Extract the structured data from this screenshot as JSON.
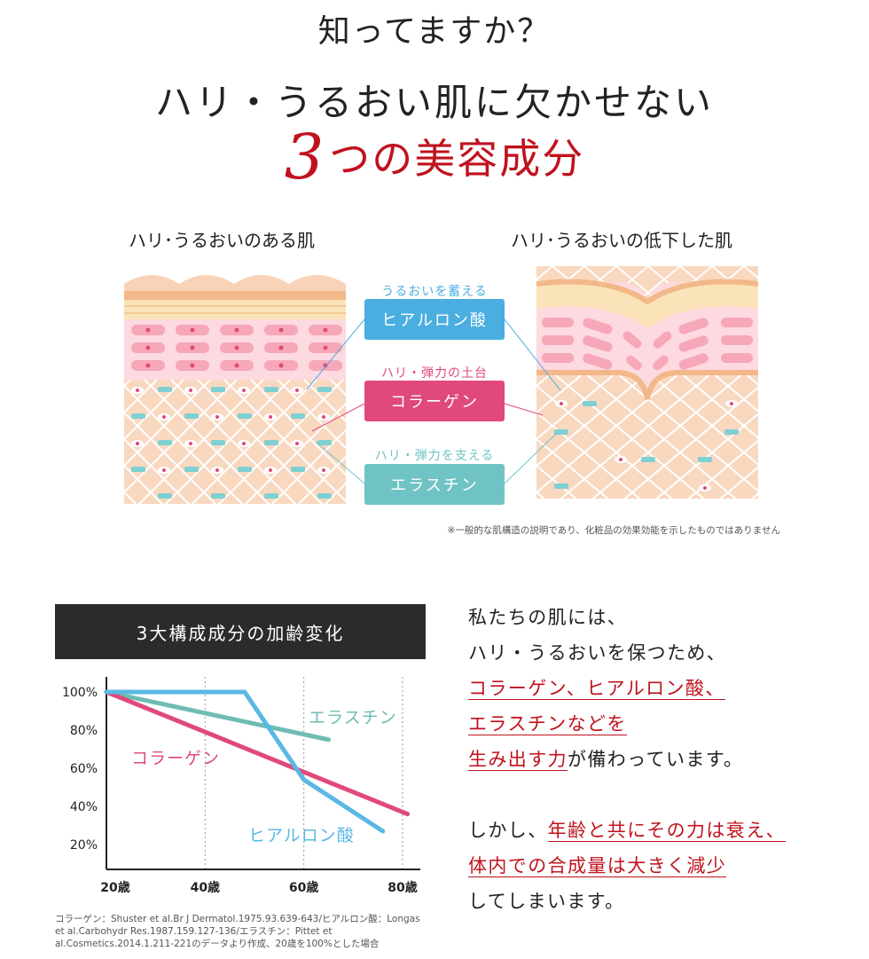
{
  "heading": {
    "question": "知ってますか？",
    "line1": "ハリ・うるおい肌に欠かせない",
    "num": "3",
    "line2": "つの美容成分"
  },
  "skin": {
    "healthy_label": "ハリ･うるおいのある肌",
    "aged_label": "ハリ･うるおいの低下した肌",
    "components": [
      {
        "caption": "うるおいを蓄える",
        "name": "ヒアルロン酸",
        "color": "#4aaee0"
      },
      {
        "caption": "ハリ・弾力の土台",
        "name": "コラーゲン",
        "color": "#e0497a"
      },
      {
        "caption": "ハリ・弾力を支える",
        "name": "エラスチン",
        "color": "#6fc3c4"
      }
    ],
    "note": "※一般的な肌構造の説明であり、化粧品の効果効能を示したものではありません"
  },
  "chart_title": "3大構成成分の加齢変化",
  "chart_data": {
    "type": "line",
    "title": "3大構成成分の加齢変化",
    "xlabel": "",
    "ylabel": "",
    "x_ticks": [
      "20歳",
      "40歳",
      "60歳",
      "80歳"
    ],
    "y_ticks": [
      "100%",
      "80%",
      "60%",
      "40%",
      "20%"
    ],
    "xlim": [
      20,
      82
    ],
    "ylim": [
      10,
      100
    ],
    "series": [
      {
        "name": "エラスチン",
        "color": "#6fbcb4",
        "x": [
          20,
          65
        ],
        "y": [
          100,
          75
        ]
      },
      {
        "name": "コラーゲン",
        "color": "#e0497a",
        "x": [
          20,
          81
        ],
        "y": [
          100,
          36
        ]
      },
      {
        "name": "ヒアルロン酸",
        "color": "#5bb8e4",
        "x": [
          20,
          48,
          60,
          76
        ],
        "y": [
          100,
          100,
          54,
          27
        ]
      }
    ]
  },
  "reference": "コラーゲン：Shuster et al.Br J Dermatol.1975.93.639-643/ヒアルロン酸：Longas et al.Carbohydr Res.1987.159.127-136/エラスチン：Pittet et al.Cosmetics.2014.1.211-221のデータより作成、20歳を100%とした場合",
  "body": {
    "p1_l1": "私たちの肌には、",
    "p1_l2": "ハリ・うるおいを保つため、",
    "p1_l3": "コラーゲン、ヒアルロン酸、",
    "p1_l4": "エラスチンなどを",
    "p1_l5_hl": "生み出す力",
    "p1_l5_rest": "が備わっています。",
    "p2_l1_a": "しかし、",
    "p2_l1_hl": "年齢と共にその力は衰え、",
    "p2_l2_hl": "体内での合成量は大きく減少",
    "p2_l3": "してしまいます。"
  }
}
